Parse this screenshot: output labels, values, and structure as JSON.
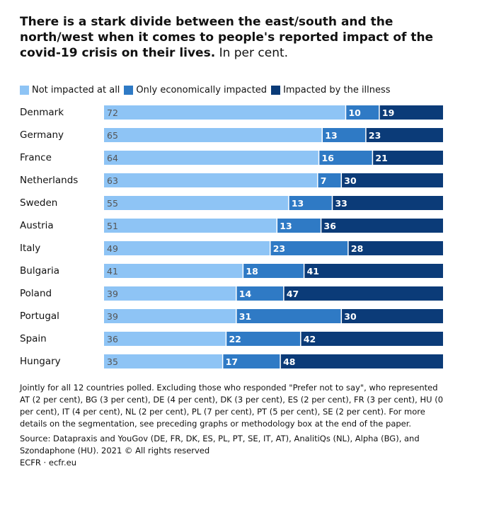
{
  "header": {
    "title_bold": "There is a stark divide between the east/south and the north/west when it comes to people's reported impact of the covid-19 crisis on their lives.",
    "title_regular": "In per cent."
  },
  "chart_data": {
    "type": "bar",
    "stacked": true,
    "orientation": "horizontal",
    "categories": [
      "Denmark",
      "Germany",
      "France",
      "Netherlands",
      "Sweden",
      "Austria",
      "Italy",
      "Bulgaria",
      "Poland",
      "Portugal",
      "Spain",
      "Hungary"
    ],
    "series": [
      {
        "name": "Not impacted at all",
        "color": "#8ec4f5",
        "label_color": "#555555",
        "values": [
          72,
          65,
          64,
          63,
          55,
          51,
          49,
          41,
          39,
          39,
          36,
          35
        ]
      },
      {
        "name": "Only economically impacted",
        "color": "#2f7ac5",
        "label_color": "#ffffff",
        "values": [
          10,
          13,
          16,
          7,
          13,
          13,
          23,
          18,
          14,
          31,
          22,
          17
        ]
      },
      {
        "name": "Impacted by the illness",
        "color": "#0b3b78",
        "label_color": "#ffffff",
        "values": [
          19,
          23,
          21,
          30,
          33,
          36,
          28,
          41,
          47,
          30,
          42,
          48
        ]
      }
    ]
  },
  "notes": {
    "footnote": "Jointly for all 12 countries polled. Excluding those who responded \"Prefer not to say\", who represented AT (2 per cent), BG (3 per cent), DE (4 per cent), DK (3 per cent), ES (2 per cent), FR (3 per cent), HU (0 per cent), IT (4 per cent), NL (2 per cent), PL (7 per cent), PT (5 per cent), SE (2 per cent). For more details on the segmentation, see preceding graphs or methodology box at the end of the paper.",
    "source": "Source: Datapraxis and YouGov (DE, FR, DK, ES, PL, PT, SE, IT, AT), AnalitiQs (NL), Alpha (BG), and Szondaphone (HU). 2021 © All rights reserved",
    "credit": "ECFR · ecfr.eu"
  }
}
